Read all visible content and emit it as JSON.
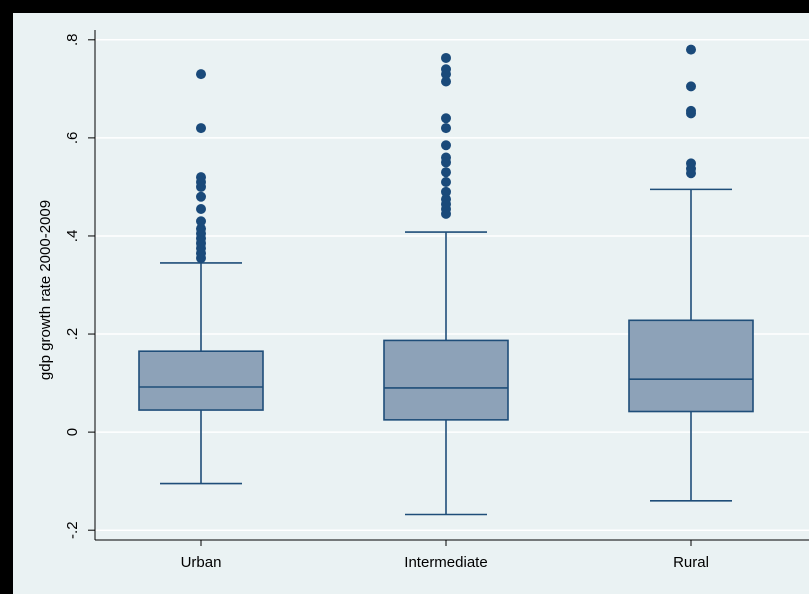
{
  "chart_data": {
    "type": "boxplot",
    "title": "",
    "xlabel": "",
    "ylabel": "gdp growth rate 2000-2009",
    "ylim": [
      -0.22,
      0.82
    ],
    "yticks": [
      {
        "value": -0.2,
        "label": "-.2"
      },
      {
        "value": 0.0,
        "label": "0"
      },
      {
        "value": 0.2,
        "label": ".2"
      },
      {
        "value": 0.4,
        "label": ".4"
      },
      {
        "value": 0.6,
        "label": ".6"
      },
      {
        "value": 0.8,
        "label": ".8"
      }
    ],
    "grid": true,
    "legend": "none",
    "colors": {
      "box_fill": "#8da2b8",
      "box_stroke": "#1f4e79",
      "outlier": "#1a4a7a",
      "grid": "#ffffff",
      "background": "#eaf2f3",
      "frame": "#000000"
    },
    "categories": [
      "Urban",
      "Intermediate",
      "Rural"
    ],
    "boxes": [
      {
        "category": "Urban",
        "whisker_low": -0.105,
        "q1": 0.045,
        "median": 0.092,
        "q3": 0.165,
        "whisker_high": 0.345,
        "outliers": [
          0.355,
          0.365,
          0.375,
          0.385,
          0.395,
          0.405,
          0.415,
          0.43,
          0.455,
          0.48,
          0.5,
          0.51,
          0.52,
          0.62,
          0.73
        ]
      },
      {
        "category": "Intermediate",
        "whisker_low": -0.168,
        "q1": 0.025,
        "median": 0.09,
        "q3": 0.187,
        "whisker_high": 0.408,
        "outliers": [
          0.445,
          0.455,
          0.465,
          0.475,
          0.49,
          0.51,
          0.53,
          0.55,
          0.56,
          0.585,
          0.62,
          0.64,
          0.715,
          0.73,
          0.74,
          0.763
        ]
      },
      {
        "category": "Rural",
        "whisker_low": -0.14,
        "q1": 0.042,
        "median": 0.108,
        "q3": 0.228,
        "whisker_high": 0.495,
        "outliers": [
          0.528,
          0.537,
          0.548,
          0.65,
          0.655,
          0.705,
          0.78
        ]
      }
    ]
  }
}
